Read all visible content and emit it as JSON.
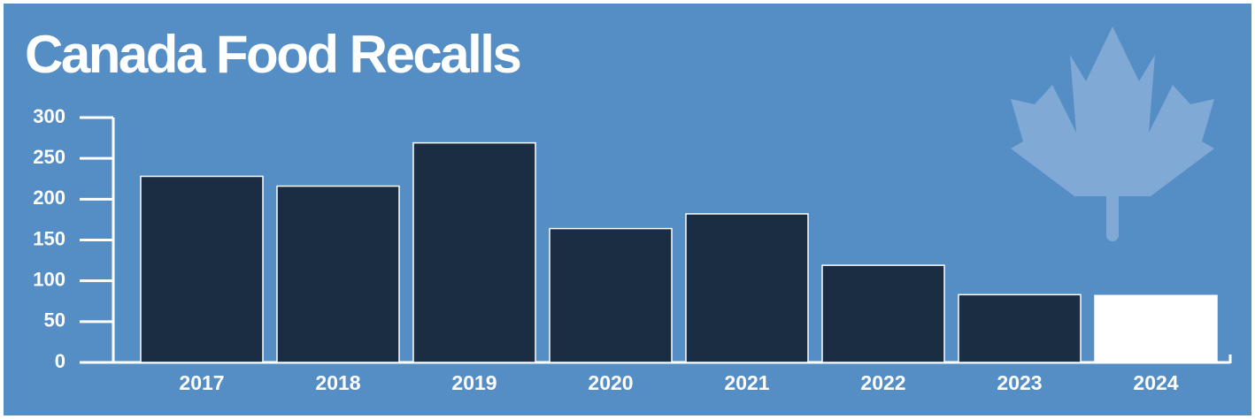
{
  "chart_data": {
    "type": "bar",
    "title": "Canada Food Recalls",
    "categories": [
      "2017",
      "2018",
      "2019",
      "2020",
      "2021",
      "2022",
      "2023",
      "2024"
    ],
    "values": [
      228,
      216,
      269,
      164,
      182,
      119,
      83,
      82
    ],
    "colors": [
      "#1b2d42",
      "#1b2d42",
      "#1b2d42",
      "#1b2d42",
      "#1b2d42",
      "#1b2d42",
      "#1b2d42",
      "#ffffff"
    ],
    "ylim": [
      0,
      300
    ],
    "yticks": [
      0,
      50,
      100,
      150,
      200,
      250,
      300
    ],
    "grid": false
  }
}
